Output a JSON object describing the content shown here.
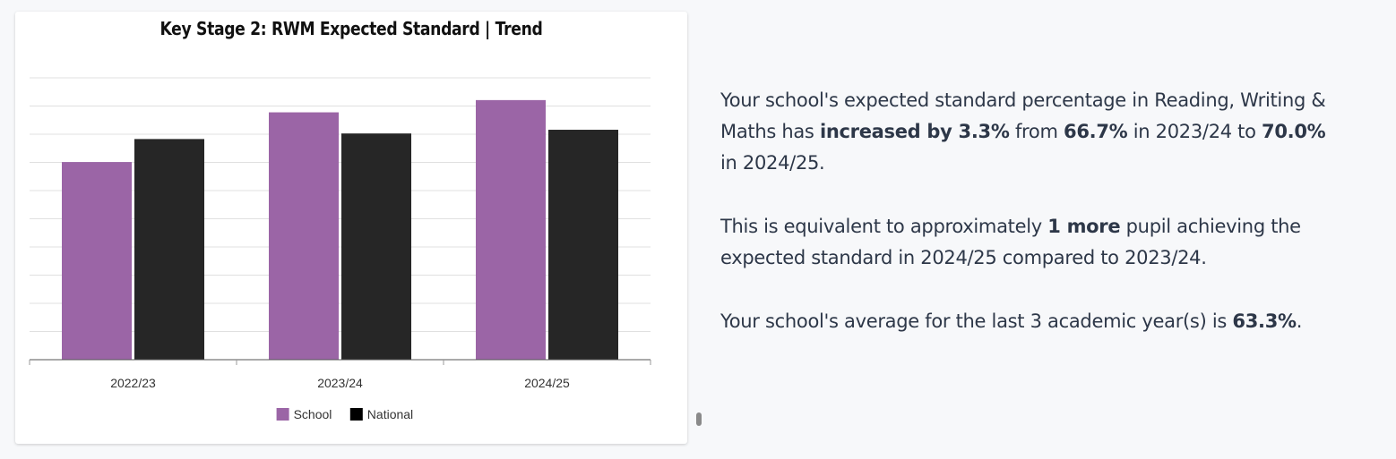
{
  "chart_data": {
    "type": "bar",
    "title": "Key Stage 2: RWM Expected Standard | Trend",
    "categories": [
      "2022/23",
      "2023/24",
      "2024/25"
    ],
    "series": [
      {
        "name": "School",
        "values": [
          53.3,
          66.7,
          70.0
        ],
        "color": "#9b65a6"
      },
      {
        "name": "National",
        "values": [
          59.5,
          61.0,
          62.0
        ],
        "color": "#262626"
      }
    ],
    "ylim": [
      0,
      76
    ],
    "grid": true,
    "legend": "bottom"
  },
  "summary": {
    "p1": {
      "t1": "Your school's expected standard percentage in Reading, Writing & Maths has ",
      "b1": "increased by 3.3%",
      "t2": " from ",
      "b2": "66.7%",
      "t3": " in 2023/24 to ",
      "b3": "70.0%",
      "t4": " in 2024/25."
    },
    "p2": {
      "t1": "This is equivalent to approximately ",
      "b1": "1 more",
      "t2": " pupil achieving the expected standard in 2024/25 compared to 2023/24."
    },
    "p3": {
      "t1": "Your school's average for the last 3 academic year(s) is ",
      "b1": "63.3%",
      "t2": "."
    }
  }
}
